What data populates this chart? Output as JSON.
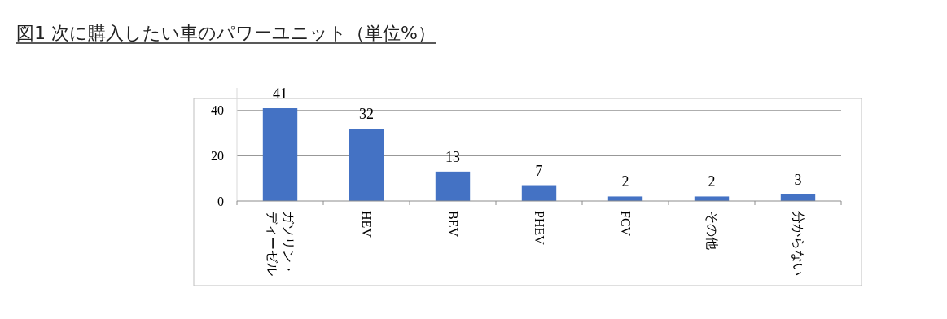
{
  "chart_data": {
    "type": "bar",
    "title": "図1  次に購入したい車のパワーユニット（単位%）",
    "categories": [
      "ガソリン・ディーゼル",
      "HEV",
      "BEV",
      "PHEV",
      "FCV",
      "その他",
      "分からない"
    ],
    "values": [
      41,
      32,
      13,
      7,
      2,
      2,
      3
    ],
    "color": "#4472c4",
    "ylim": [
      0,
      50
    ],
    "yticks": [
      0,
      20,
      40
    ],
    "grid": "y",
    "data_labels": true
  }
}
